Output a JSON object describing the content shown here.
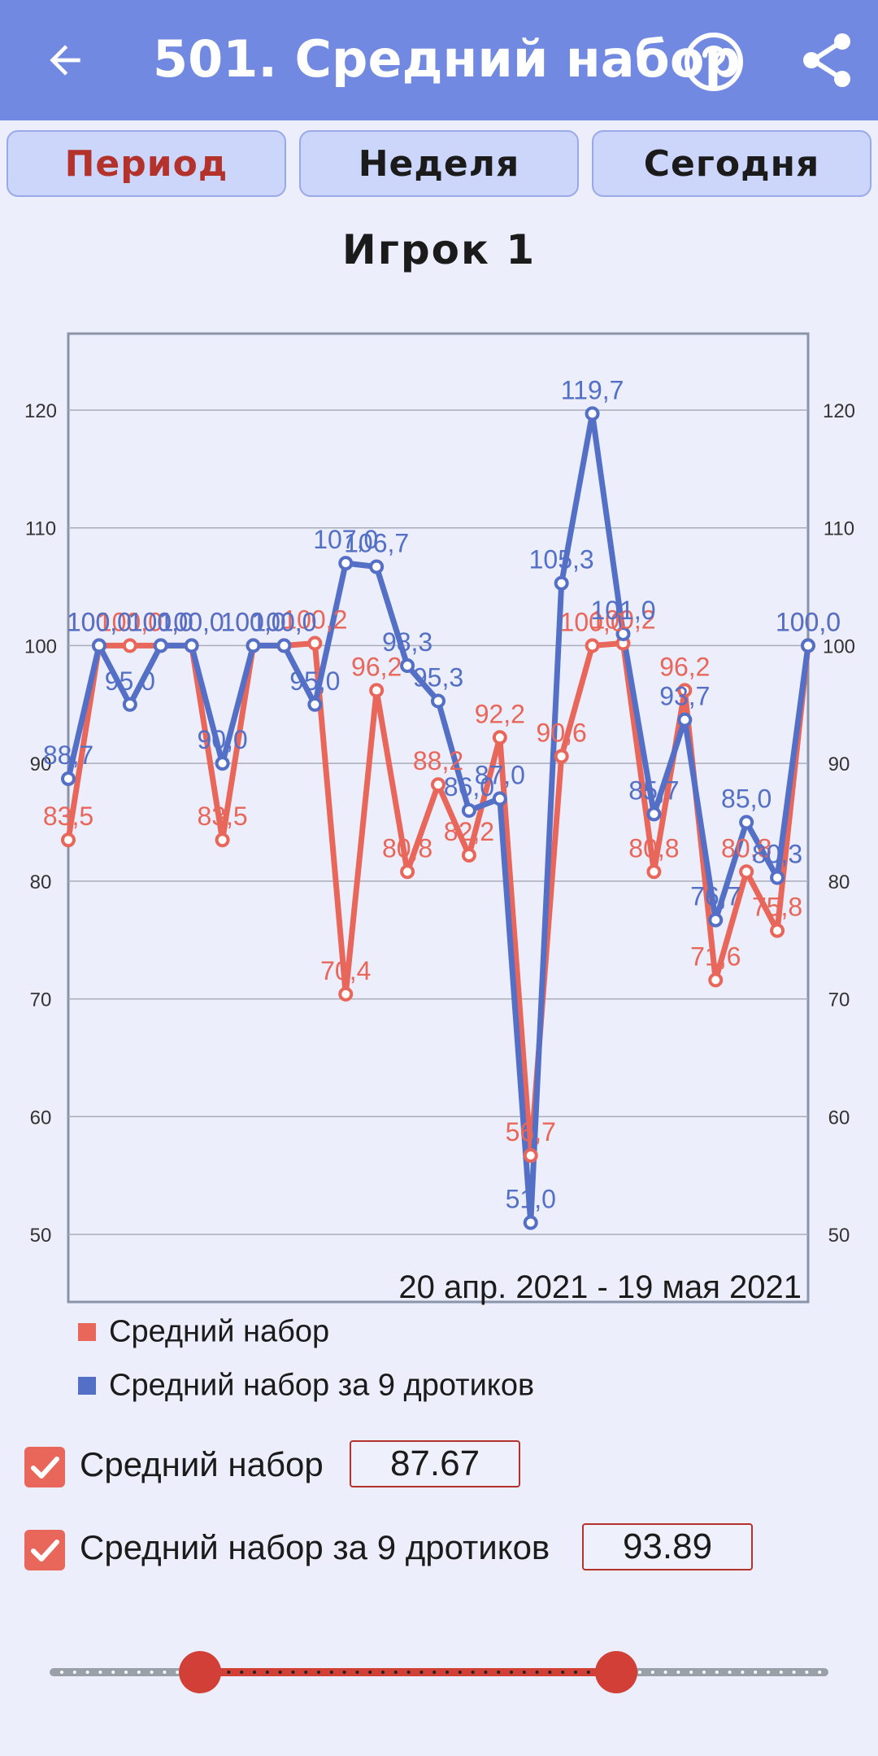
{
  "appbar": {
    "title": "501. Средний набор",
    "icons": [
      "arrow-back-icon",
      "help-circle-icon",
      "share-icon"
    ],
    "background": "#7289e2"
  },
  "tabs": [
    {
      "label": "Период",
      "active": true
    },
    {
      "label": "Неделя",
      "active": false
    },
    {
      "label": "Сегодня",
      "active": false
    }
  ],
  "player_title": "Игрок  1",
  "chart_data": {
    "type": "line",
    "date_range": "20 апр. 2021 - 19 мая 2021",
    "ylim": [
      45,
      127
    ],
    "yticks": [
      50,
      60,
      70,
      80,
      90,
      100,
      110,
      120
    ],
    "grid": true,
    "x": [
      1,
      2,
      3,
      4,
      5,
      6,
      7,
      8,
      9,
      10,
      11,
      12,
      13,
      14,
      15,
      16,
      17,
      18,
      19,
      20,
      21,
      22,
      23,
      24,
      25
    ],
    "series": [
      {
        "name": "Средний набор",
        "color": "#e8665a",
        "values": [
          83.5,
          100.0,
          100.0,
          100.0,
          100.0,
          83.5,
          100.0,
          100.0,
          100.2,
          70.4,
          96.2,
          80.8,
          88.2,
          82.2,
          92.2,
          56.7,
          90.6,
          100.0,
          100.2,
          80.8,
          96.2,
          71.6,
          80.8,
          75.8,
          100.0
        ],
        "labels": [
          "83,5",
          "100,0",
          "100,0",
          "100,0",
          "100,0",
          "83,5",
          "100,0",
          "100,0",
          "100,2",
          "70,4",
          "96,2",
          "80,8",
          "88,2",
          "82,2",
          "92,2",
          "56,7",
          "90,6",
          "100,0",
          "100,2",
          "80,8",
          "96,2",
          "71,6",
          "80,8",
          "75,8",
          "100,0"
        ]
      },
      {
        "name": "Средний набор за 9 дротиков",
        "color": "#5470c6",
        "values": [
          88.7,
          100.0,
          95.0,
          100.0,
          100.0,
          90.0,
          100.0,
          100.0,
          95.0,
          107.0,
          106.7,
          98.3,
          95.3,
          86.0,
          87.0,
          51.0,
          105.3,
          119.7,
          101.0,
          85.7,
          93.7,
          76.7,
          85.0,
          80.3,
          100.0
        ],
        "labels": [
          "88,7",
          "100,0",
          "95,0",
          "100,0",
          "100,0",
          "90,0",
          "100,0",
          "100,0",
          "95,0",
          "107,0",
          "106,7",
          "98,3",
          "95,3",
          "86,0",
          "87,0",
          "51,0",
          "105,3",
          "119,7",
          "101,0",
          "85,7",
          "93,7",
          "76,7",
          "85,0",
          "80,3",
          "100,0"
        ]
      }
    ]
  },
  "legend": [
    {
      "label": "Средний набор",
      "color": "#e8665a"
    },
    {
      "label": "Средний набор за 9 дротиков",
      "color": "#5470c6"
    }
  ],
  "toggles": [
    {
      "label": "Средний набор",
      "checked": true,
      "value": "87.67"
    },
    {
      "label": "Средний набор за 9 дротиков",
      "checked": true,
      "value": "93.89"
    }
  ],
  "range_slider": {
    "low_fraction": 0.19,
    "high_fraction": 0.73,
    "accent": "#d13f36"
  }
}
